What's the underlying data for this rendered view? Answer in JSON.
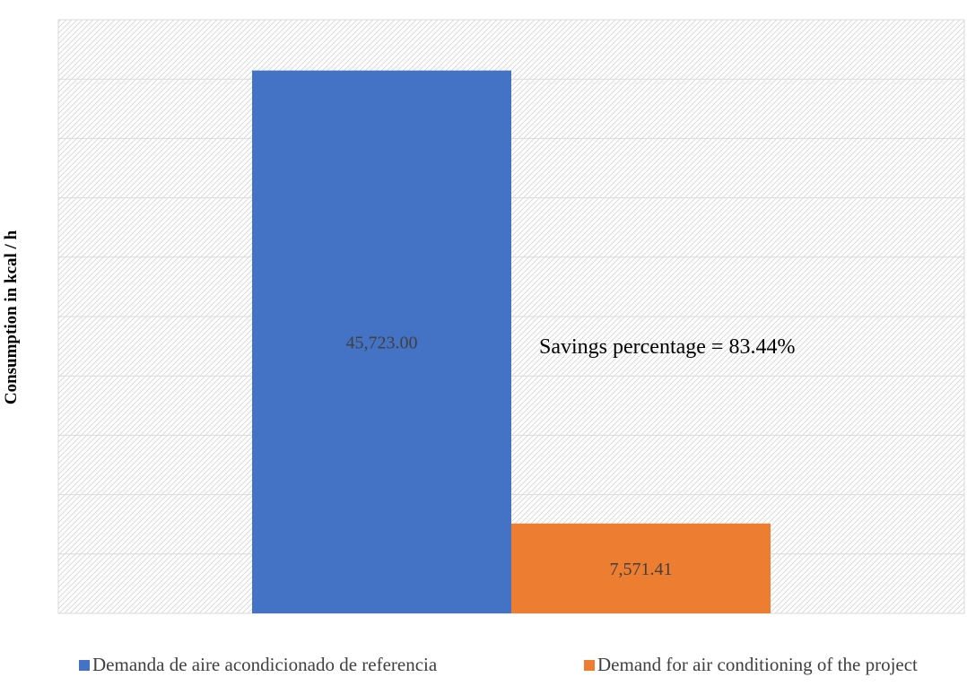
{
  "chart_data": {
    "type": "bar",
    "ylabel": "Consumption in kcal / h",
    "ylim": [
      0,
      50000
    ],
    "y_gridline_step": 5000,
    "y_tick_labels_shown": false,
    "grid": true,
    "legend_placement": "bottom",
    "series": [
      {
        "name": "Demanda de aire acondicionado de referencia",
        "value": 45723.0,
        "label": "45,723.00",
        "color": "#4472C4"
      },
      {
        "name": "Demand for air conditioning of the project",
        "value": 7571.41,
        "label": "7,571.41",
        "color": "#ED7D31"
      }
    ],
    "annotation": "Savings percentage = 83.44%"
  }
}
